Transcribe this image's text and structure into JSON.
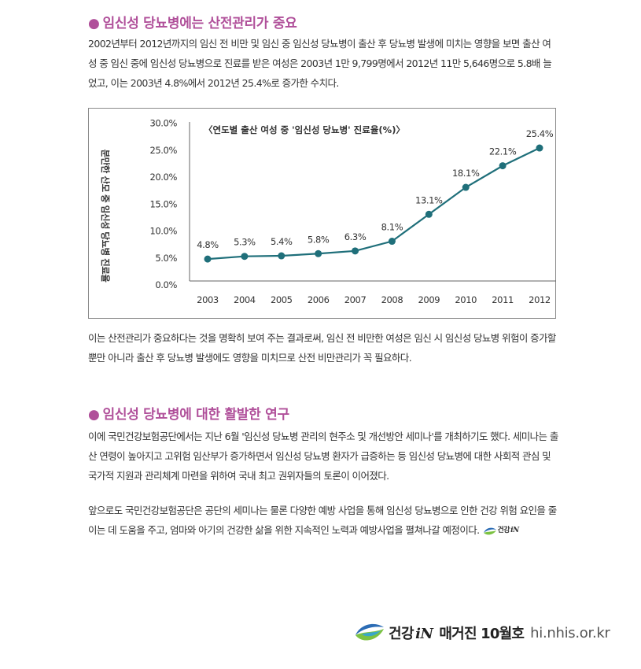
{
  "section1": {
    "title": "임신성 당뇨병에는 산전관리가 중요",
    "paragraph": "2002년부터 2012년까지의 임신 전 비만 및 임신 중 임신성 당뇨병이 출산 후 당뇨병 발생에 미치는 영향을 보면 출산 여성 중 임신 중에 임신성 당뇨병으로 진료를 받은 여성은 2003년 1만 9,799명에서 2012년 11만 5,646명으로 5.8배 늘었고, 이는 2003년 4.8%에서 2012년 25.4%로 증가한 수치다.",
    "after_chart": "이는 산전관리가 중요하다는 것을 명확히 보여 주는 결과로써, 임신 전 비만한 여성은 임신 시 임신성 당뇨병 위험이 증가할 뿐만 아니라 출산 후 당뇨병 발생에도 영향을 미치므로 산전 비만관리가 꼭 필요하다."
  },
  "section2": {
    "title": "임신성 당뇨병에 대한 활발한 연구",
    "paragraph1": "이에 국민건강보험공단에서는 지난 6월 '임신성 당뇨병 관리의 현주소 및 개선방안 세미나'를 개최하기도 했다. 세미나는 출산 연령이 높아지고 고위험 임산부가 증가하면서 임신성 당뇨병 환자가 급증하는 등 임신성 당뇨병에 대한 사회적 관심 및 국가적 지원과 관리체계 마련을 위하여 국내 최고 권위자들의 토론이 이어졌다.",
    "paragraph2": "앞으로도 국민건강보험공단은 공단의 세미나는 물론 다양한 예방 사업을 통해 임신성 당뇨병으로 인한 건강 위험 요인을 줄이는 데 도움을 주고, 엄마와 아기의 건강한 삶을 위한 지속적인 노력과 예방사업을 펼쳐나갈 예정이다.",
    "signoff_text": "건강"
  },
  "footer": {
    "brand_prefix": "건강",
    "brand_mark": "iN",
    "issue": "매거진 10월호",
    "site": "hi.nhis.or.kr"
  },
  "colors": {
    "heading": "#b0509a",
    "line": "#1f6f7a",
    "logo_blue": "#2b6cb5",
    "logo_green": "#7cc242"
  },
  "chart_data": {
    "type": "line",
    "title": "〈연도별 출산 여성 중 '임신성 당뇨병' 진료율(%)〉",
    "ylabel": "분만한 산모 중 임신성 당뇨병 진료율",
    "x": [
      "2003",
      "2004",
      "2005",
      "2006",
      "2007",
      "2008",
      "2009",
      "2010",
      "2011",
      "2012"
    ],
    "values": [
      4.8,
      5.3,
      5.4,
      5.8,
      6.3,
      8.1,
      13.1,
      18.1,
      22.1,
      25.4
    ],
    "value_labels": [
      "4.8%",
      "5.3%",
      "5.4%",
      "5.8%",
      "6.3%",
      "8.1%",
      "13.1%",
      "18.1%",
      "22.1%",
      "25.4%"
    ],
    "yticks": [
      "0.0%",
      "5.0%",
      "10.0%",
      "15.0%",
      "20.0%",
      "25.0%",
      "30.0%"
    ],
    "ylim": [
      0,
      30
    ],
    "grid": false
  }
}
